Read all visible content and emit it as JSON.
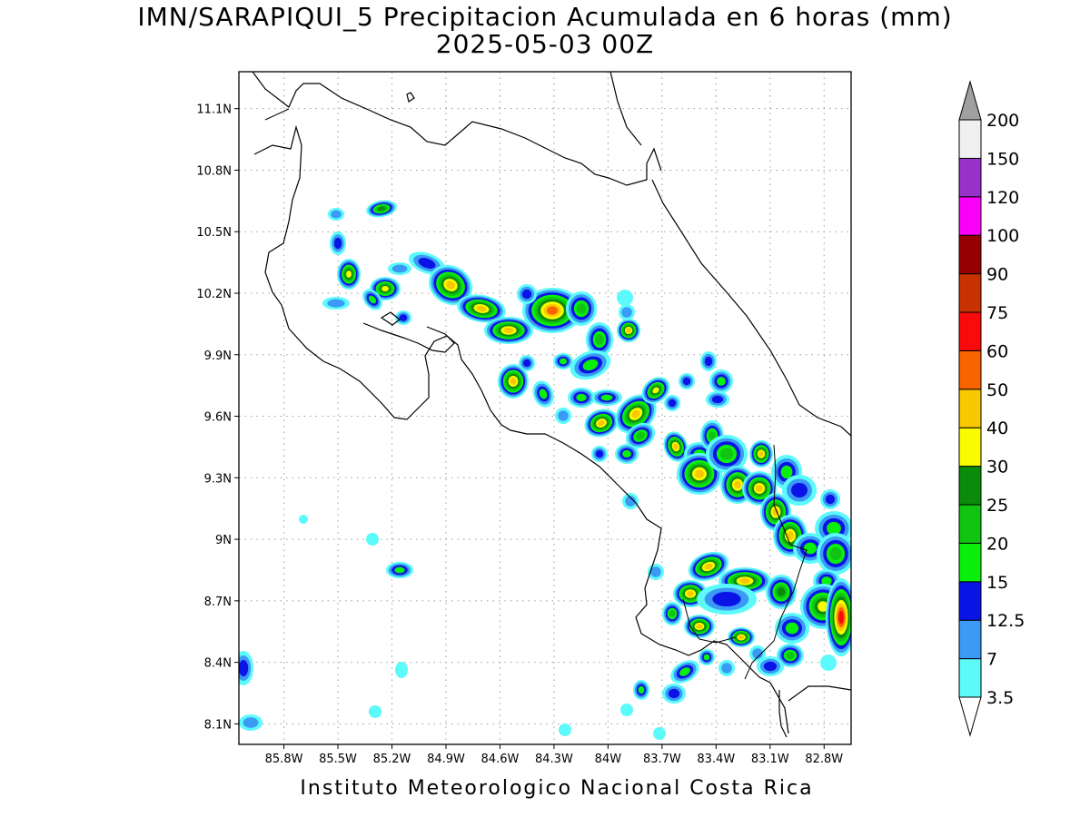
{
  "title": {
    "line1": "IMN/SARAPIQUI_5 Precipitacion Acumulada en 6 horas (mm)",
    "line2": "2025-05-03 00Z"
  },
  "footer": "Instituto Meteorologico Nacional Costa Rica",
  "map": {
    "lon_range": [
      -86.05,
      -82.65
    ],
    "lat_range": [
      8.0,
      11.28
    ],
    "lon_ticks": [
      {
        "v": -85.8,
        "label": "85.8W"
      },
      {
        "v": -85.5,
        "label": "85.5W"
      },
      {
        "v": -85.2,
        "label": "85.2W"
      },
      {
        "v": -84.9,
        "label": "84.9W"
      },
      {
        "v": -84.6,
        "label": "84.6W"
      },
      {
        "v": -84.3,
        "label": "84.3W"
      },
      {
        "v": -84.0,
        "label": "84W"
      },
      {
        "v": -83.7,
        "label": "83.7W"
      },
      {
        "v": -83.4,
        "label": "83.4W"
      },
      {
        "v": -83.1,
        "label": "83.1W"
      },
      {
        "v": -82.8,
        "label": "82.8W"
      }
    ],
    "lat_ticks": [
      {
        "v": 11.1,
        "label": "11.1N"
      },
      {
        "v": 10.8,
        "label": "10.8N"
      },
      {
        "v": 10.5,
        "label": "10.5N"
      },
      {
        "v": 10.2,
        "label": "10.2N"
      },
      {
        "v": 9.9,
        "label": "9.9N"
      },
      {
        "v": 9.6,
        "label": "9.6N"
      },
      {
        "v": 9.3,
        "label": "9.3N"
      },
      {
        "v": 9.0,
        "label": "9N"
      },
      {
        "v": 8.7,
        "label": "8.7N"
      },
      {
        "v": 8.4,
        "label": "8.4N"
      },
      {
        "v": 8.1,
        "label": "8.1N"
      }
    ],
    "grid": true
  },
  "colorbar": {
    "labels": [
      "3.5",
      "7",
      "12.5",
      "15",
      "20",
      "25",
      "30",
      "40",
      "50",
      "60",
      "75",
      "90",
      "100",
      "120",
      "150",
      "200"
    ],
    "colors": [
      "#5cfafa",
      "#3a9af5",
      "#0a14e6",
      "#0af00a",
      "#12c412",
      "#0a8c0a",
      "#fafa00",
      "#fac800",
      "#fa6400",
      "#fa0a0a",
      "#c83200",
      "#960000",
      "#fa00fa",
      "#9632c8",
      "#f0f0f0"
    ],
    "over_color": "#a0a0a0",
    "under_color": "#ffffff"
  }
}
